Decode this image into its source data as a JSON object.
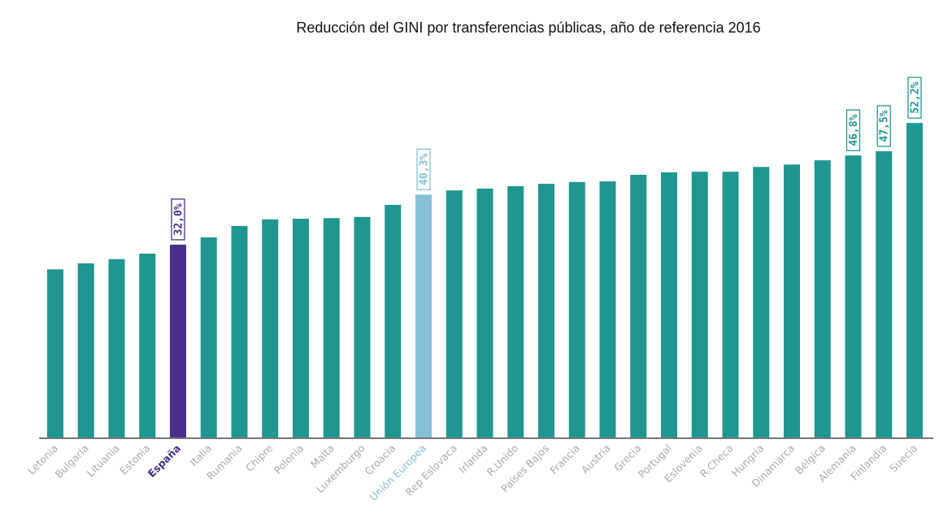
{
  "chart_data": {
    "type": "bar",
    "title": "Reducción del GINI por transferencias públicas, año de referencia 2016",
    "xlabel": "",
    "ylabel": "",
    "ylim": [
      0,
      55
    ],
    "grid": false,
    "categories": [
      "Letonia",
      "Bulgaria",
      "Lituania",
      "Estonia",
      "España",
      "Italia",
      "Rumania",
      "Chipre",
      "Polonia",
      "Malta",
      "Luxemburgo",
      "Croacia",
      "Unión Europea",
      "Rep Eslovaca",
      "Irlanda",
      "R.Unido",
      "Países Bajos",
      "Francia",
      "Austria",
      "Grecia",
      "Portugal",
      "Eslovenia",
      "R.Checa",
      "Hungría",
      "Dinamarca",
      "Bélgica",
      "Alemania",
      "Finlandia",
      "Suecia"
    ],
    "values": [
      27.9,
      28.9,
      29.6,
      30.5,
      32.0,
      33.2,
      35.1,
      36.2,
      36.3,
      36.4,
      36.6,
      38.6,
      40.3,
      41.0,
      41.3,
      41.7,
      42.1,
      42.4,
      42.5,
      43.6,
      44.0,
      44.1,
      44.1,
      44.9,
      45.3,
      46.0,
      46.8,
      47.5,
      52.2
    ],
    "data_labels": {
      "España": "32,0%",
      "Unión Europea": "40,3%",
      "Alemania": "46,8%",
      "Finlandia": "47,5%",
      "Suecia": "52,2%"
    },
    "colors": {
      "default": "#1f9690",
      "highlight_spain": "#4b2e8c",
      "highlight_eu": "#86bfd6",
      "label": "#aaaaaa",
      "axis": "#777777"
    }
  }
}
